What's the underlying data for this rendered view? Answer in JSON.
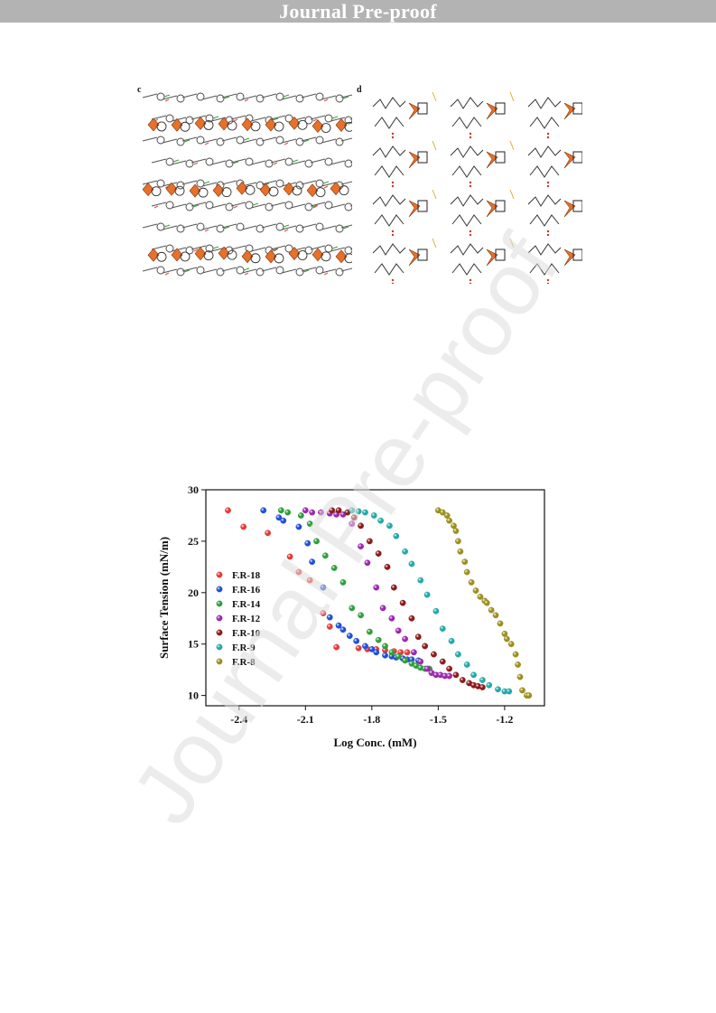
{
  "header": {
    "title": "Journal Pre-proof",
    "background": "#b3b3b3"
  },
  "figure_top": {
    "panel_c": {
      "label": "c"
    },
    "panel_d": {
      "label": "d"
    }
  },
  "watermark": {
    "text": "Journal Pre-proof",
    "color": "#dcdcdc"
  },
  "chart_data": {
    "type": "scatter",
    "xlabel": "Log Conc. (mM)",
    "ylabel": "Surface Tension (mN/m)",
    "xlim": [
      -2.55,
      -1.02
    ],
    "ylim": [
      9,
      30
    ],
    "xticks": [
      -2.4,
      -2.1,
      -1.8,
      -1.5,
      -1.2
    ],
    "xtick_labels": [
      "-2.4",
      "-2.1",
      "-1.8",
      "-1.5",
      "-1.2"
    ],
    "yticks": [
      10,
      15,
      20,
      25,
      30
    ],
    "ytick_labels": [
      "10",
      "15",
      "20",
      "25",
      "30"
    ],
    "legend_position": "left",
    "series": [
      {
        "name": "F.R-18",
        "color": "#e53935",
        "x": [
          -2.45,
          -2.38,
          -2.27,
          -2.17,
          -2.13,
          -2.08,
          -2.02,
          -1.99,
          -1.96,
          -1.86,
          -1.82,
          -1.78,
          -1.74,
          -1.7,
          -1.67,
          -1.64
        ],
        "y": [
          28.0,
          26.4,
          25.8,
          23.5,
          22.0,
          21.2,
          18.0,
          16.7,
          14.7,
          14.6,
          14.5,
          14.5,
          14.4,
          14.3,
          14.2,
          14.2
        ]
      },
      {
        "name": "F.R-16",
        "color": "#1e4fd8",
        "x": [
          -2.29,
          -2.22,
          -2.2,
          -2.13,
          -2.09,
          -2.07,
          -2.02,
          -1.99,
          -1.95,
          -1.93,
          -1.9,
          -1.87,
          -1.83,
          -1.8,
          -1.78,
          -1.74,
          -1.71,
          -1.69,
          -1.66,
          -1.64,
          -1.62,
          -1.59
        ],
        "y": [
          28.0,
          27.3,
          27.0,
          26.4,
          24.8,
          23.0,
          20.5,
          17.6,
          16.8,
          16.4,
          15.8,
          15.3,
          14.8,
          14.5,
          14.2,
          13.9,
          13.8,
          13.7,
          13.6,
          13.5,
          13.5,
          13.4
        ]
      },
      {
        "name": "F.R-14",
        "color": "#2e9e3a",
        "x": [
          -2.21,
          -2.18,
          -2.12,
          -2.08,
          -2.05,
          -2.01,
          -1.97,
          -1.93,
          -1.89,
          -1.85,
          -1.81,
          -1.77,
          -1.74,
          -1.71,
          -1.68,
          -1.65,
          -1.62,
          -1.6,
          -1.58,
          -1.56,
          -1.54
        ],
        "y": [
          28.0,
          27.8,
          27.5,
          26.7,
          25.0,
          23.6,
          22.4,
          21.0,
          18.5,
          17.8,
          16.2,
          15.4,
          14.8,
          14.2,
          13.8,
          13.4,
          13.1,
          12.9,
          12.7,
          12.6,
          12.6
        ]
      },
      {
        "name": "F.R-12",
        "color": "#9c27b0",
        "x": [
          -2.1,
          -2.07,
          -2.03,
          -1.99,
          -1.96,
          -1.93,
          -1.89,
          -1.85,
          -1.82,
          -1.78,
          -1.75,
          -1.71,
          -1.68,
          -1.65,
          -1.61,
          -1.58,
          -1.55,
          -1.53,
          -1.51,
          -1.49,
          -1.47,
          -1.45
        ],
        "y": [
          28.0,
          27.8,
          27.8,
          27.7,
          27.6,
          27.6,
          26.7,
          24.5,
          22.9,
          20.5,
          18.5,
          17.5,
          16.3,
          15.5,
          14.2,
          13.3,
          12.6,
          12.2,
          12.0,
          12.0,
          11.9,
          11.9
        ]
      },
      {
        "name": "F.R-10",
        "color": "#8b1a1a",
        "x": [
          -1.98,
          -1.95,
          -1.91,
          -1.88,
          -1.85,
          -1.81,
          -1.77,
          -1.73,
          -1.7,
          -1.66,
          -1.62,
          -1.59,
          -1.56,
          -1.52,
          -1.48,
          -1.45,
          -1.42,
          -1.39,
          -1.36,
          -1.34,
          -1.32,
          -1.3
        ],
        "y": [
          28.0,
          28.0,
          27.8,
          27.3,
          26.5,
          25.0,
          23.8,
          22.5,
          20.5,
          19.0,
          17.5,
          15.7,
          14.8,
          14.0,
          13.3,
          12.6,
          12.0,
          11.5,
          11.2,
          11.0,
          10.9,
          10.8
        ]
      },
      {
        "name": "F.R-9",
        "color": "#23a8a8",
        "x": [
          -1.89,
          -1.86,
          -1.83,
          -1.79,
          -1.76,
          -1.72,
          -1.69,
          -1.65,
          -1.62,
          -1.58,
          -1.55,
          -1.51,
          -1.48,
          -1.44,
          -1.41,
          -1.37,
          -1.34,
          -1.3,
          -1.27,
          -1.23,
          -1.2,
          -1.18
        ],
        "y": [
          28.0,
          27.9,
          27.8,
          27.5,
          27.0,
          26.5,
          25.5,
          24.0,
          22.8,
          21.2,
          19.8,
          18.2,
          16.5,
          15.3,
          14.0,
          13.0,
          12.0,
          11.5,
          11.0,
          10.6,
          10.4,
          10.4
        ]
      },
      {
        "name": "F.R-8",
        "color": "#9c8f1e",
        "x": [
          -1.5,
          -1.48,
          -1.46,
          -1.45,
          -1.43,
          -1.42,
          -1.41,
          -1.4,
          -1.38,
          -1.37,
          -1.35,
          -1.33,
          -1.31,
          -1.29,
          -1.28,
          -1.26,
          -1.24,
          -1.22,
          -1.2,
          -1.19,
          -1.17,
          -1.15,
          -1.14,
          -1.13,
          -1.12,
          -1.1,
          -1.09
        ],
        "y": [
          28.0,
          27.8,
          27.5,
          27.0,
          26.5,
          26.0,
          25.0,
          24.0,
          23.0,
          22.0,
          21.0,
          20.2,
          19.6,
          19.2,
          19.0,
          18.3,
          17.8,
          17.0,
          16.0,
          15.5,
          15.0,
          14.0,
          13.0,
          11.8,
          10.5,
          10.0,
          10.0
        ]
      }
    ]
  }
}
